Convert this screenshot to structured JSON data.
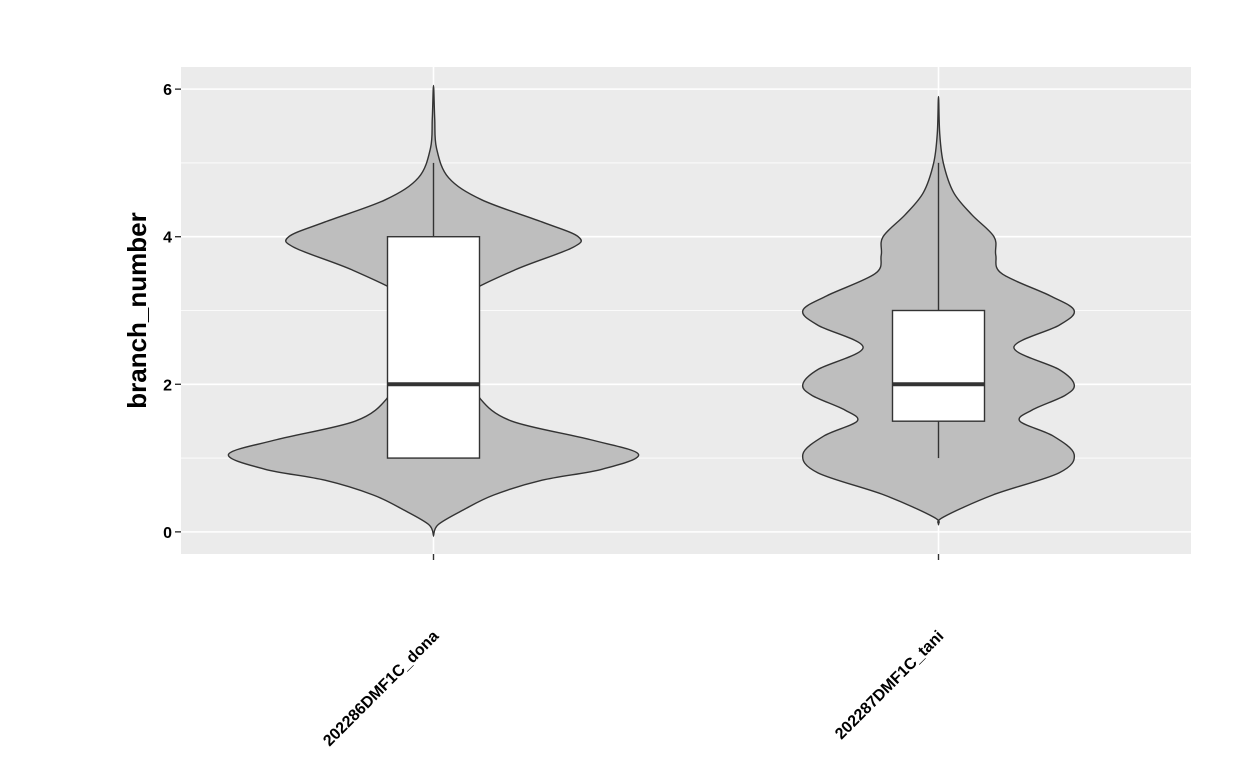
{
  "chart_data": {
    "type": "violin",
    "title": "",
    "xlabel": "",
    "ylabel": "branch_number",
    "ylim": [
      -0.3,
      6.3
    ],
    "yticks": [
      0,
      2,
      4,
      6
    ],
    "grid": true,
    "categories": [
      "202286DMF1C_dona",
      "202287DMF1C_tani"
    ],
    "colors": {
      "panel": "#ebebeb",
      "grid": "#ffffff",
      "violin_fill": "#bebebe",
      "outline": "#333333",
      "box_fill": "#ffffff"
    },
    "violins": [
      {
        "name": "202286DMF1C_dona",
        "min": -0.05,
        "max": 6.05,
        "density_profile": [
          [
            -0.05,
            0.0
          ],
          [
            0.1,
            0.08
          ],
          [
            0.3,
            0.5
          ],
          [
            0.5,
            1.0
          ],
          [
            0.7,
            1.8
          ],
          [
            0.85,
            2.8
          ],
          [
            1.05,
            3.4
          ],
          [
            1.25,
            2.6
          ],
          [
            1.5,
            1.3
          ],
          [
            1.8,
            0.78
          ],
          [
            2.1,
            0.68
          ],
          [
            2.5,
            0.58
          ],
          [
            2.8,
            0.52
          ],
          [
            3.0,
            0.55
          ],
          [
            3.2,
            0.5
          ],
          [
            3.55,
            1.35
          ],
          [
            3.85,
            2.3
          ],
          [
            4.0,
            2.4
          ],
          [
            4.2,
            1.8
          ],
          [
            4.5,
            0.8
          ],
          [
            4.8,
            0.25
          ],
          [
            5.2,
            0.05
          ],
          [
            5.6,
            0.02
          ],
          [
            6.05,
            0.0
          ]
        ],
        "box": {
          "lower": 1,
          "q1": 1,
          "median": 2,
          "q3": 4,
          "upper": 5
        }
      },
      {
        "name": "202287DMF1C_tani",
        "min": 0.1,
        "max": 5.9,
        "density_profile": [
          [
            0.1,
            0.0
          ],
          [
            0.2,
            0.08
          ],
          [
            0.5,
            0.9
          ],
          [
            0.8,
            2.0
          ],
          [
            1.05,
            2.25
          ],
          [
            1.3,
            1.9
          ],
          [
            1.5,
            1.35
          ],
          [
            1.65,
            1.55
          ],
          [
            1.85,
            2.1
          ],
          [
            2.0,
            2.25
          ],
          [
            2.2,
            2.0
          ],
          [
            2.5,
            1.25
          ],
          [
            2.8,
            2.0
          ],
          [
            3.0,
            2.25
          ],
          [
            3.2,
            1.85
          ],
          [
            3.5,
            1.05
          ],
          [
            3.75,
            0.95
          ],
          [
            4.0,
            0.92
          ],
          [
            4.3,
            0.55
          ],
          [
            4.6,
            0.25
          ],
          [
            5.0,
            0.08
          ],
          [
            5.4,
            0.02
          ],
          [
            5.9,
            0.0
          ]
        ],
        "box": {
          "lower": 1,
          "q1": 1.5,
          "median": 2,
          "q3": 3,
          "upper": 5
        }
      }
    ]
  }
}
